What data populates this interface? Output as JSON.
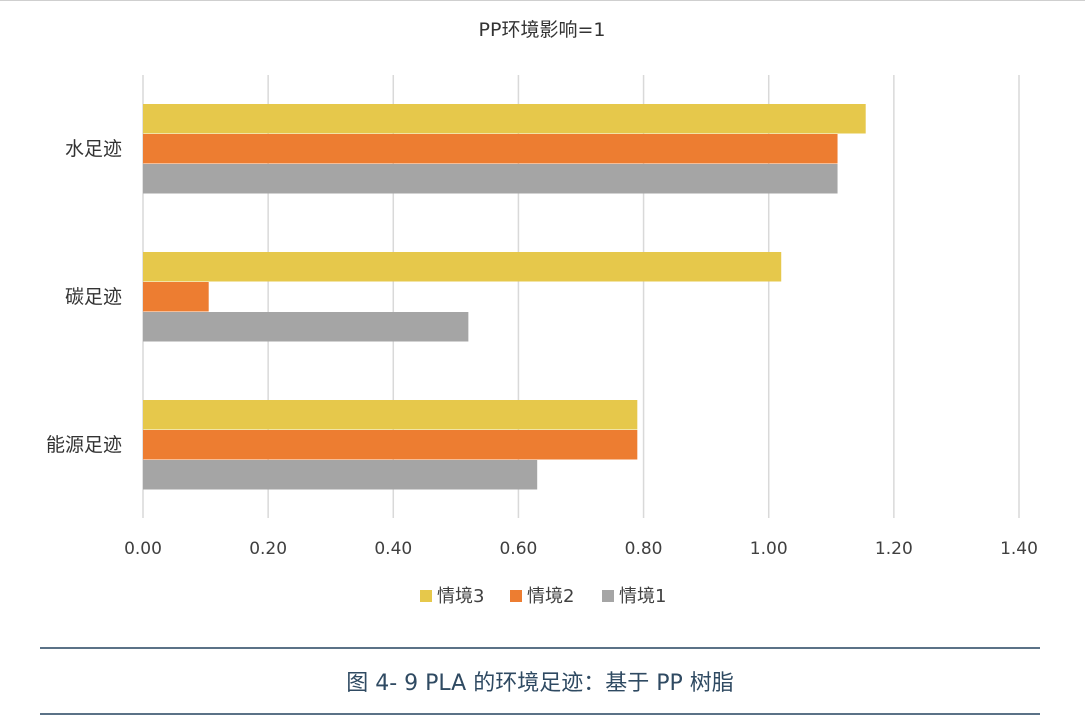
{
  "chart_data": {
    "type": "bar",
    "orientation": "horizontal",
    "title": "PP环境影响=1",
    "categories": [
      "水足迹",
      "碳足迹",
      "能源足迹"
    ],
    "series": [
      {
        "name": "情境3",
        "color": "#e6c84b",
        "values": [
          1.155,
          1.02,
          0.79
        ]
      },
      {
        "name": "情境2",
        "color": "#ed7d31",
        "values": [
          1.11,
          0.105,
          0.79
        ]
      },
      {
        "name": "情境1",
        "color": "#a5a5a5",
        "values": [
          1.11,
          0.52,
          0.63
        ]
      }
    ],
    "xlim": [
      0,
      1.4
    ],
    "x_ticks": [
      "0.00",
      "0.20",
      "0.40",
      "0.60",
      "0.80",
      "1.00",
      "1.20",
      "1.40"
    ],
    "grid": true,
    "legend_position": "bottom"
  },
  "caption": "图 4- 9 PLA 的环境足迹：基于 PP 树脂"
}
